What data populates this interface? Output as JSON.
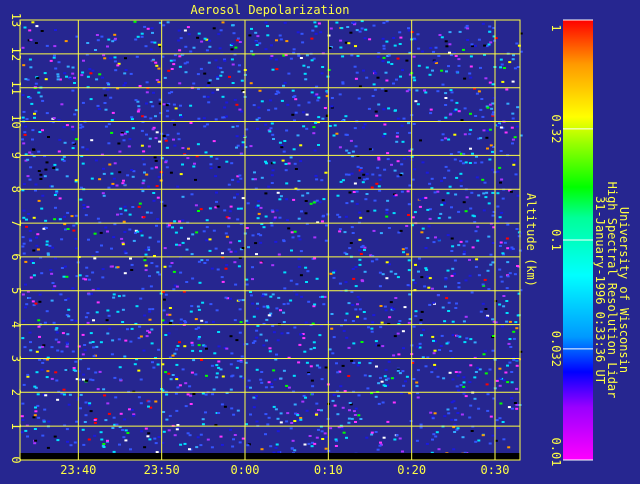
{
  "chart_data": {
    "type": "heatmap",
    "title": "Aerosol Depolarization",
    "ylabel": "Altitude (km)",
    "xlabel": "",
    "x_ticks": [
      "23:40",
      "23:50",
      "0:00",
      "0:10",
      "0:20",
      "0:30"
    ],
    "y_ticks": [
      "0",
      "1",
      "2",
      "3",
      "4",
      "5",
      "6",
      "7",
      "8",
      "9",
      "10",
      "11",
      "12",
      "13"
    ],
    "ylim": [
      0,
      13
    ],
    "xlim_minutes_relative_to_midnight": [
      -27,
      33
    ],
    "colorbar": {
      "scale": "log",
      "range": [
        0.01,
        1
      ],
      "tick_labels": [
        "0.01",
        "0.032",
        "0.1",
        "0.32",
        "1"
      ],
      "colors": [
        "#ff00ff",
        "#9900ff",
        "#0000ff",
        "#0099ff",
        "#00ffff",
        "#00ff99",
        "#00ff00",
        "#99ff00",
        "#ffff00",
        "#ff9900",
        "#ff0000"
      ]
    },
    "grid": true,
    "grid_color": "#ffff44",
    "background_color": "#262690",
    "noise_palette": [
      "#3355ff",
      "#1a1ae0",
      "#00e0ff",
      "#33aaff",
      "#aa33ff",
      "#ff33ff",
      "#000000",
      "#ff0000",
      "#00ff00",
      "#ffff00",
      "#ffffff",
      "#ff9900"
    ],
    "credit_lines": [
      "University of Wisconsin",
      "High Spectral Resolution Lidar",
      "31-January-1996 0:33:36 UT"
    ]
  }
}
